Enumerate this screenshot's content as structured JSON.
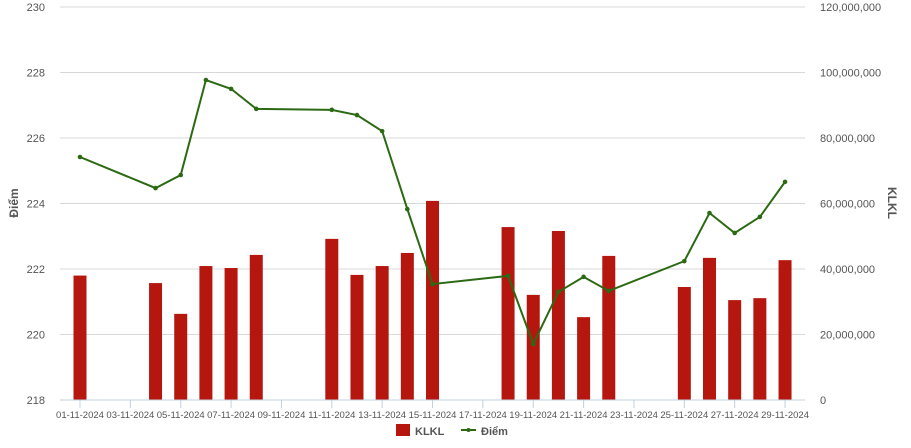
{
  "chart_data": {
    "type": "bar+line",
    "title": "",
    "x_dates": [
      "01-11-2024",
      "04-11-2024",
      "05-11-2024",
      "06-11-2024",
      "07-11-2024",
      "08-11-2024",
      "11-11-2024",
      "12-11-2024",
      "13-11-2024",
      "14-11-2024",
      "15-11-2024",
      "18-11-2024",
      "19-11-2024",
      "20-11-2024",
      "21-11-2024",
      "22-11-2024",
      "25-11-2024",
      "26-11-2024",
      "27-11-2024",
      "28-11-2024",
      "29-11-2024"
    ],
    "x_tick_labels": [
      "01-11-2024",
      "03-11-2024",
      "05-11-2024",
      "07-11-2024",
      "09-11-2024",
      "11-11-2024",
      "13-11-2024",
      "15-11-2024",
      "17-11-2024",
      "19-11-2024",
      "21-11-2024",
      "23-11-2024",
      "25-11-2024",
      "27-11-2024",
      "29-11-2024"
    ],
    "left_axis": {
      "label": "Điểm",
      "range": [
        218,
        230
      ],
      "ticks": [
        "218",
        "220",
        "222",
        "224",
        "226",
        "228",
        "230"
      ]
    },
    "right_axis": {
      "label": "KLKL",
      "range": [
        0,
        120000000
      ],
      "ticks": [
        "0",
        "20,000,000",
        "40,000,000",
        "60,000,000",
        "80,000,000",
        "100,000,000",
        "120,000,000"
      ]
    },
    "grid": true,
    "legend_position": "bottom",
    "series": [
      {
        "name": "KLKL",
        "type": "bar",
        "axis": "right",
        "color": "#b5170f",
        "values": [
          38000000,
          35700000,
          26300000,
          40900000,
          40300000,
          44300000,
          49200000,
          38200000,
          40900000,
          44900000,
          60800000,
          52800000,
          32100000,
          51600000,
          25300000,
          44000000,
          34500000,
          43400000,
          30500000,
          31100000,
          42700000
        ]
      },
      {
        "name": "Điểm",
        "type": "line",
        "axis": "left",
        "color": "#2b6a12",
        "values": [
          225.42,
          224.47,
          224.87,
          227.77,
          227.5,
          226.89,
          226.86,
          226.7,
          226.21,
          223.83,
          221.54,
          221.79,
          219.71,
          221.3,
          221.76,
          221.33,
          222.24,
          223.71,
          223.1,
          223.59,
          224.66
        ]
      }
    ]
  }
}
